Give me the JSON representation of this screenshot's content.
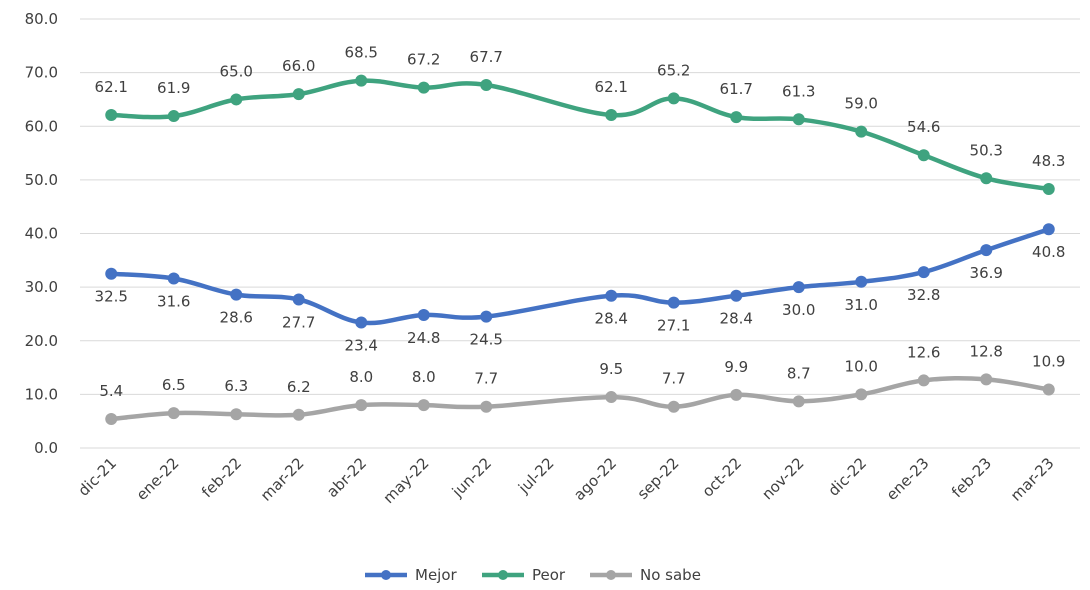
{
  "chart_data": {
    "type": "line",
    "title": "",
    "xlabel": "",
    "ylabel": "",
    "ylim": [
      0,
      80
    ],
    "y_ticks": [
      "0.0",
      "10.0",
      "20.0",
      "30.0",
      "40.0",
      "50.0",
      "60.0",
      "70.0",
      "80.0"
    ],
    "grid": "horizontal",
    "legend_position": "bottom",
    "categories": [
      "dic-21",
      "ene-22",
      "feb-22",
      "mar-22",
      "abr-22",
      "may-22",
      "jun-22",
      "jul-22",
      "ago-22",
      "sep-22",
      "oct-22",
      "nov-22",
      "dic-22",
      "ene-23",
      "feb-23",
      "mar-23"
    ],
    "series": [
      {
        "name": "Mejor",
        "color": "#4472c4",
        "label_position": "below",
        "values": [
          32.5,
          31.6,
          28.6,
          27.7,
          23.4,
          24.8,
          24.5,
          null,
          28.4,
          27.1,
          28.4,
          30.0,
          31.0,
          32.8,
          36.9,
          40.8
        ],
        "labels": [
          "32.5",
          "31.6",
          "28.6",
          "27.7",
          "23.4",
          "24.8",
          "24.5",
          null,
          "28.4",
          "27.1",
          "28.4",
          "30.0",
          "31.0",
          "32.8",
          "36.9",
          "40.8"
        ]
      },
      {
        "name": "Peor",
        "color": "#3fa37f",
        "label_position": "above",
        "values": [
          62.1,
          61.9,
          65.0,
          66.0,
          68.5,
          67.2,
          67.7,
          null,
          62.1,
          65.2,
          61.7,
          61.3,
          59.0,
          54.6,
          50.3,
          48.3
        ],
        "labels": [
          "62.1",
          "61.9",
          "65.0",
          "66.0",
          "68.5",
          "67.2",
          "67.7",
          null,
          "62.1",
          "65.2",
          "61.7",
          "61.3",
          "59.0",
          "54.6",
          "50.3",
          "48.3"
        ]
      },
      {
        "name": "No sabe",
        "color": "#a5a5a5",
        "label_position": "above",
        "values": [
          5.4,
          6.5,
          6.3,
          6.2,
          8.0,
          8.0,
          7.7,
          null,
          9.5,
          7.7,
          9.9,
          8.7,
          10.0,
          12.6,
          12.8,
          10.9
        ],
        "labels": [
          "5.4",
          "6.5",
          "6.3",
          "6.2",
          "8.0",
          "8.0",
          "7.7",
          null,
          "9.5",
          "7.7",
          "9.9",
          "8.7",
          "10.0",
          "12.6",
          "12.8",
          "10.9"
        ]
      }
    ]
  }
}
